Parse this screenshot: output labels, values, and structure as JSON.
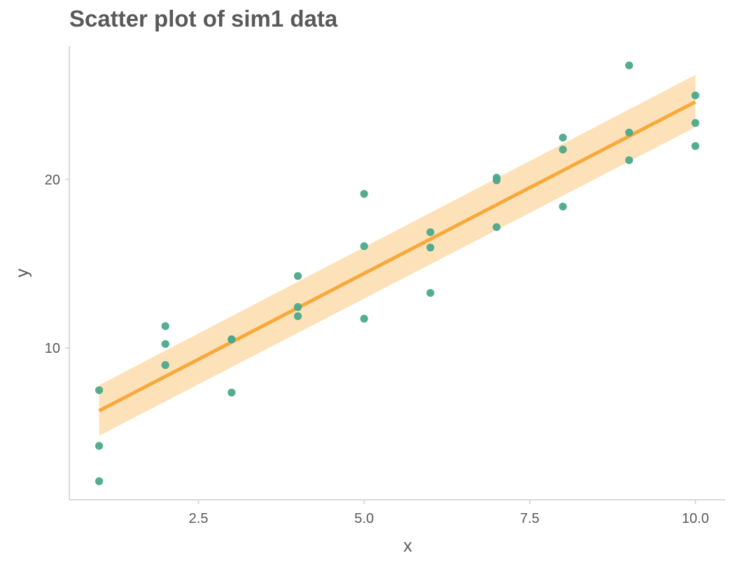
{
  "chart_data": {
    "type": "scatter",
    "title": "Scatter plot of sim1 data",
    "xlabel": "x",
    "ylabel": "y",
    "xlim": [
      0.55,
      10.45
    ],
    "ylim": [
      1.0,
      27.9
    ],
    "x_ticks": [
      2.5,
      5.0,
      7.5,
      10.0
    ],
    "x_tick_labels": [
      "2.5",
      "5.0",
      "7.5",
      "10.0"
    ],
    "y_ticks": [
      10,
      20
    ],
    "y_tick_labels": [
      "10",
      "20"
    ],
    "grid": false,
    "legend": "none",
    "points": [
      {
        "x": 1,
        "y": 4.2
      },
      {
        "x": 1,
        "y": 7.5
      },
      {
        "x": 1,
        "y": 2.1
      },
      {
        "x": 2,
        "y": 8.99
      },
      {
        "x": 2,
        "y": 10.24
      },
      {
        "x": 2,
        "y": 11.3
      },
      {
        "x": 3,
        "y": 7.36
      },
      {
        "x": 3,
        "y": 10.51
      },
      {
        "x": 3,
        "y": 10.51
      },
      {
        "x": 4,
        "y": 12.43
      },
      {
        "x": 4,
        "y": 11.89
      },
      {
        "x": 4,
        "y": 14.27
      },
      {
        "x": 5,
        "y": 19.14
      },
      {
        "x": 5,
        "y": 11.74
      },
      {
        "x": 5,
        "y": 16.04
      },
      {
        "x": 6,
        "y": 13.27
      },
      {
        "x": 6,
        "y": 16.87
      },
      {
        "x": 6,
        "y": 15.96
      },
      {
        "x": 7,
        "y": 20.1
      },
      {
        "x": 7,
        "y": 17.17
      },
      {
        "x": 7,
        "y": 19.95
      },
      {
        "x": 8,
        "y": 21.77
      },
      {
        "x": 8,
        "y": 18.39
      },
      {
        "x": 8,
        "y": 22.48
      },
      {
        "x": 9,
        "y": 26.76
      },
      {
        "x": 9,
        "y": 21.14
      },
      {
        "x": 9,
        "y": 22.78
      },
      {
        "x": 10,
        "y": 24.98
      },
      {
        "x": 10,
        "y": 23.35
      },
      {
        "x": 10,
        "y": 21.98
      }
    ],
    "fit": {
      "method": "linear",
      "x": [
        1,
        10
      ],
      "y": [
        6.28,
        24.6
      ],
      "band_low": [
        4.8,
        23.1
      ],
      "band_high": [
        7.8,
        26.2
      ]
    },
    "colors": {
      "points": "#4aa98a",
      "line": "#f7a93b",
      "band": "#fddcab",
      "axis": "#d9d9d9",
      "text": "#595959"
    }
  }
}
